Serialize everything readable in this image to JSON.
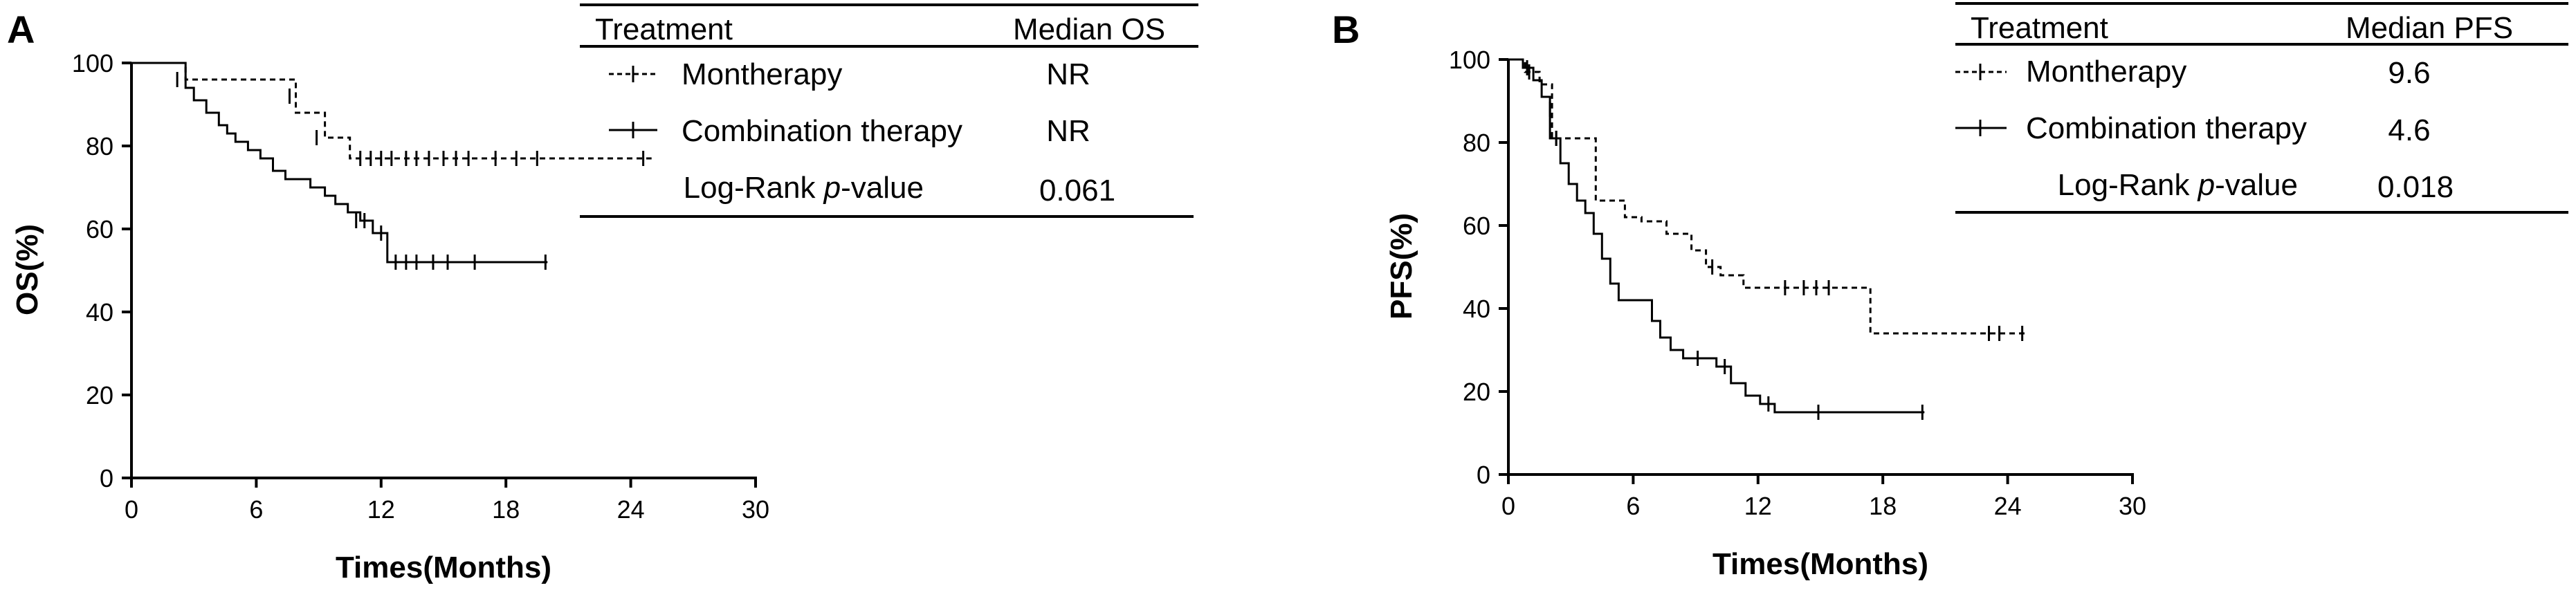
{
  "panels": {
    "a": {
      "letter": "A",
      "ylabel": "OS(%)",
      "xlabel": "Times(Months)",
      "table": {
        "col1": "Treatment",
        "col2": "Median OS",
        "rows": [
          {
            "label": "Montherapy",
            "value": "NR"
          },
          {
            "label": "Combination therapy",
            "value": "NR"
          }
        ],
        "pvalue_prefix": "Log-Rank ",
        "pvalue_italic": "p",
        "pvalue_suffix": "-value",
        "pvalue": "0.061"
      }
    },
    "b": {
      "letter": "B",
      "ylabel": "PFS(%)",
      "xlabel": "Times(Months)",
      "table": {
        "col1": "Treatment",
        "col2": "Median PFS",
        "rows": [
          {
            "label": "Montherapy",
            "value": "9.6"
          },
          {
            "label": "Combination therapy",
            "value": "4.6"
          }
        ],
        "pvalue_prefix": "Log-Rank ",
        "pvalue_italic": "p",
        "pvalue_suffix": "-value",
        "pvalue": "0.018"
      }
    }
  },
  "chart_data": [
    {
      "type": "line",
      "title": "",
      "xlabel": "Times(Months)",
      "ylabel": "OS(%)",
      "xlim": [
        0,
        30
      ],
      "ylim": [
        0,
        100
      ],
      "xticks": [
        0,
        6,
        12,
        18,
        24,
        30
      ],
      "yticks": [
        0,
        20,
        40,
        60,
        80,
        100
      ],
      "grid": false,
      "legend": "table, top-right",
      "series": [
        {
          "name": "Montherapy",
          "style": "dashed",
          "x": [
            0,
            2,
            2.6,
            7.4,
            7.9,
            9.3,
            10.5,
            25
          ],
          "y": [
            100,
            100,
            96,
            96,
            88,
            82,
            77,
            77
          ],
          "censor_x": [
            2.2,
            7.6,
            8.9,
            11,
            11.5,
            12,
            12.5,
            13.2,
            13.7,
            14.3,
            15,
            15.6,
            16.2,
            17.5,
            18.5,
            19.5,
            24.6
          ],
          "censor_y": [
            96,
            92,
            82,
            77,
            77,
            77,
            77,
            77,
            77,
            77,
            77,
            77,
            77,
            77,
            77,
            77,
            77
          ]
        },
        {
          "name": "Combination therapy",
          "style": "solid",
          "x": [
            0,
            2.6,
            3.0,
            3.6,
            4.2,
            4.6,
            5.0,
            5.6,
            6.2,
            6.8,
            7.4,
            8.6,
            9.3,
            9.8,
            10.4,
            11.0,
            11.6,
            12.3,
            20
          ],
          "y": [
            100,
            94,
            91,
            88,
            85,
            83,
            81,
            79,
            77,
            74,
            72,
            70,
            68,
            66,
            64,
            62,
            59,
            52,
            52
          ],
          "censor_x": [
            10.8,
            11.2,
            12.0,
            12.7,
            13.2,
            13.7,
            14.5,
            15.2,
            16.5,
            19.9
          ],
          "censor_y": [
            62,
            62,
            59,
            52,
            52,
            52,
            52,
            52,
            52,
            52
          ]
        }
      ]
    },
    {
      "type": "line",
      "title": "",
      "xlabel": "Times(Months)",
      "ylabel": "PFS(%)",
      "xlim": [
        0,
        30
      ],
      "ylim": [
        0,
        100
      ],
      "xticks": [
        0,
        6,
        12,
        18,
        24,
        30
      ],
      "yticks": [
        0,
        20,
        40,
        60,
        80,
        100
      ],
      "grid": false,
      "legend": "table, top-right",
      "series": [
        {
          "name": "Montherapy",
          "style": "dashed",
          "x": [
            0,
            0.8,
            1.5,
            2.1,
            3.9,
            4.2,
            5.6,
            6.4,
            7.6,
            8.8,
            9.5,
            10.2,
            11.3,
            17.4,
            25
          ],
          "y": [
            100,
            97,
            94,
            81,
            81,
            66,
            62,
            61,
            58,
            54,
            50,
            48,
            45,
            34,
            34
          ],
          "censor_x": [
            1.0,
            2.3,
            9.8,
            13.3,
            14.2,
            14.8,
            15.4,
            23.1,
            23.6,
            24.7
          ],
          "censor_y": [
            97,
            81,
            50,
            45,
            45,
            45,
            45,
            34,
            34,
            34
          ]
        },
        {
          "name": "Combination therapy",
          "style": "solid",
          "x": [
            0,
            0.7,
            1.2,
            1.6,
            2.0,
            2.5,
            2.9,
            3.3,
            3.7,
            4.1,
            4.5,
            4.9,
            5.3,
            6.9,
            7.3,
            7.8,
            8.4,
            10.0,
            10.7,
            11.4,
            12.1,
            12.8,
            20
          ],
          "y": [
            100,
            98,
            95,
            91,
            81,
            75,
            70,
            66,
            63,
            58,
            52,
            46,
            42,
            37,
            33,
            30,
            28,
            26,
            22,
            19,
            17,
            15,
            15
          ],
          "censor_x": [
            0.9,
            2.0,
            2.3,
            9.1,
            10.4,
            12.5,
            14.9,
            19.9
          ],
          "censor_y": [
            98,
            88,
            81,
            28,
            26,
            17,
            15,
            15
          ]
        }
      ]
    }
  ]
}
